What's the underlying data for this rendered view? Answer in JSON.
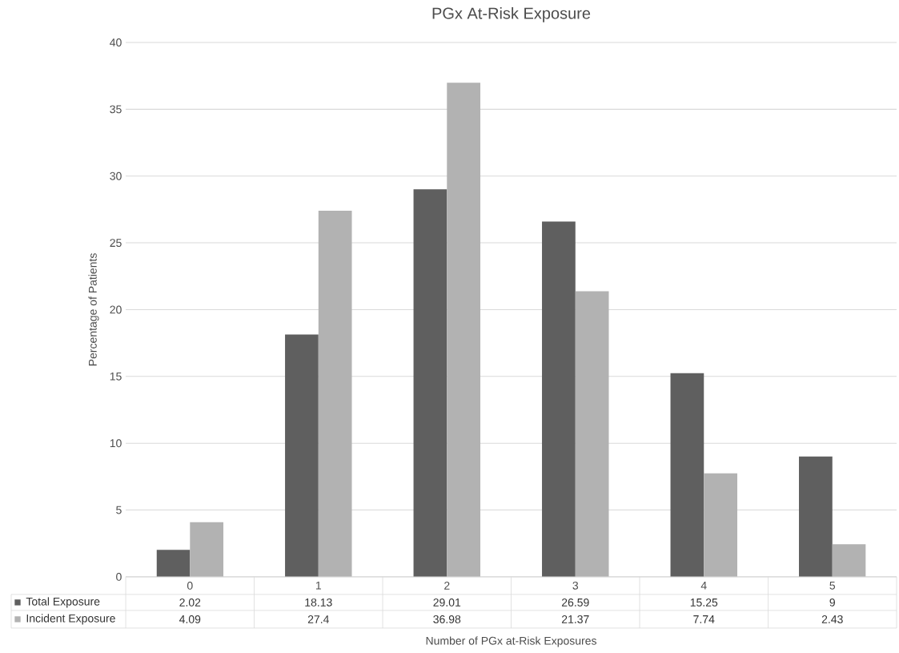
{
  "chart_data": {
    "type": "bar",
    "title": "PGx At-Risk Exposure",
    "xlabel": "Number of PGx at-Risk Exposures",
    "ylabel": "Percentage of Patients",
    "categories": [
      "0",
      "1",
      "2",
      "3",
      "4",
      "5"
    ],
    "series": [
      {
        "name": "Total Exposure",
        "color": "#5f5f5f",
        "values": [
          2.02,
          18.13,
          29.01,
          26.59,
          15.25,
          9
        ]
      },
      {
        "name": "Incident Exposure",
        "color": "#b2b2b2",
        "values": [
          4.09,
          27.4,
          36.98,
          21.37,
          7.74,
          2.43
        ]
      }
    ],
    "ylim": [
      0,
      40
    ],
    "yticks": [
      0,
      5,
      10,
      15,
      20,
      25,
      30,
      35,
      40
    ],
    "grid": "y",
    "data_labels": true,
    "legend": "bottom left"
  }
}
